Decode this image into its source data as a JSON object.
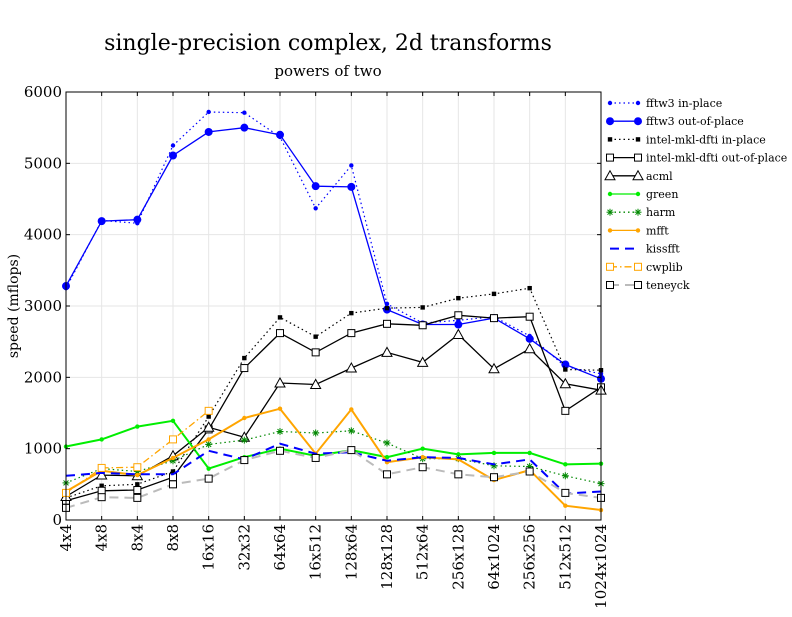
{
  "chart_data": {
    "type": "line",
    "title": "single-precision complex, 2d transforms",
    "subtitle": "powers of two",
    "xlabel": "",
    "ylabel": "speed (mflops)",
    "ylim": [
      0,
      6000
    ],
    "yticks": [
      "0",
      "1000",
      "2000",
      "3000",
      "4000",
      "5000",
      "6000"
    ],
    "grid": true,
    "legend_position": "right",
    "categories": [
      "4x4",
      "4x8",
      "8x4",
      "8x8",
      "16x16",
      "32x32",
      "64x64",
      "16x512",
      "128x64",
      "128x128",
      "512x64",
      "256x128",
      "64x1024",
      "256x256",
      "512x512",
      "1024x1024"
    ],
    "series": [
      {
        "name": "fftw3 in-place",
        "color": "#0000ff",
        "dash": "dot",
        "marker": "dot-small",
        "values": [
          3250,
          4200,
          4160,
          5250,
          5720,
          5710,
          5370,
          4370,
          4970,
          3030,
          2760,
          2800,
          2850,
          2580,
          2150,
          2050
        ]
      },
      {
        "name": "fftw3 out-of-place",
        "color": "#0000ff",
        "dash": "solid",
        "marker": "dot-large",
        "values": [
          3280,
          4190,
          4210,
          5110,
          5440,
          5500,
          5400,
          4680,
          4670,
          2950,
          2740,
          2740,
          2830,
          2540,
          2180,
          1980
        ]
      },
      {
        "name": "intel-mkl-dfti in-place",
        "color": "#000000",
        "dash": "dot",
        "marker": "square-filled",
        "values": [
          310,
          480,
          500,
          680,
          1450,
          2270,
          2840,
          2570,
          2900,
          2970,
          2980,
          3110,
          3170,
          3250,
          2110,
          2100
        ]
      },
      {
        "name": "intel-mkl-dfti out-of-place",
        "color": "#000000",
        "dash": "solid",
        "marker": "square-open",
        "values": [
          270,
          410,
          420,
          600,
          1270,
          2130,
          2620,
          2350,
          2620,
          2750,
          2730,
          2870,
          2830,
          2850,
          1530,
          1860
        ]
      },
      {
        "name": "acml",
        "color": "#000000",
        "dash": "solid",
        "marker": "triangle-open",
        "values": [
          330,
          630,
          620,
          900,
          1300,
          1160,
          1920,
          1900,
          2130,
          2350,
          2210,
          2600,
          2120,
          2400,
          1910,
          1820
        ]
      },
      {
        "name": "green",
        "color": "#00ee00",
        "dash": "solid",
        "marker": "dot-small",
        "values": [
          1030,
          1130,
          1310,
          1390,
          720,
          880,
          1000,
          900,
          980,
          880,
          1000,
          920,
          940,
          940,
          780,
          790
        ]
      },
      {
        "name": "harm",
        "color": "#008800",
        "dash": "dot",
        "marker": "asterisk",
        "values": [
          520,
          720,
          680,
          830,
          1060,
          1120,
          1240,
          1220,
          1250,
          1080,
          860,
          860,
          760,
          750,
          620,
          510
        ]
      },
      {
        "name": "mfft",
        "color": "#ffa500",
        "dash": "solid",
        "marker": "dot-small",
        "values": [
          400,
          690,
          630,
          870,
          1130,
          1430,
          1560,
          930,
          1550,
          810,
          880,
          850,
          560,
          700,
          200,
          140
        ]
      },
      {
        "name": "kissfft",
        "color": "#0000ff",
        "dash": "longdash",
        "marker": "none",
        "values": [
          620,
          660,
          640,
          640,
          970,
          850,
          1070,
          930,
          950,
          830,
          880,
          870,
          780,
          850,
          370,
          400
        ]
      },
      {
        "name": "cwplib",
        "color": "#ffa500",
        "dash": "dashdot",
        "marker": "square-open",
        "values": [
          380,
          730,
          740,
          1130,
          1530,
          null,
          null,
          null,
          null,
          null,
          null,
          null,
          null,
          null,
          null,
          null
        ]
      },
      {
        "name": "teneyck",
        "color": "#bbbbbb",
        "dash": "longdash",
        "marker": "square-open-gray",
        "values": [
          170,
          320,
          310,
          500,
          580,
          840,
          970,
          870,
          980,
          640,
          740,
          640,
          600,
          680,
          380,
          310
        ]
      }
    ]
  }
}
